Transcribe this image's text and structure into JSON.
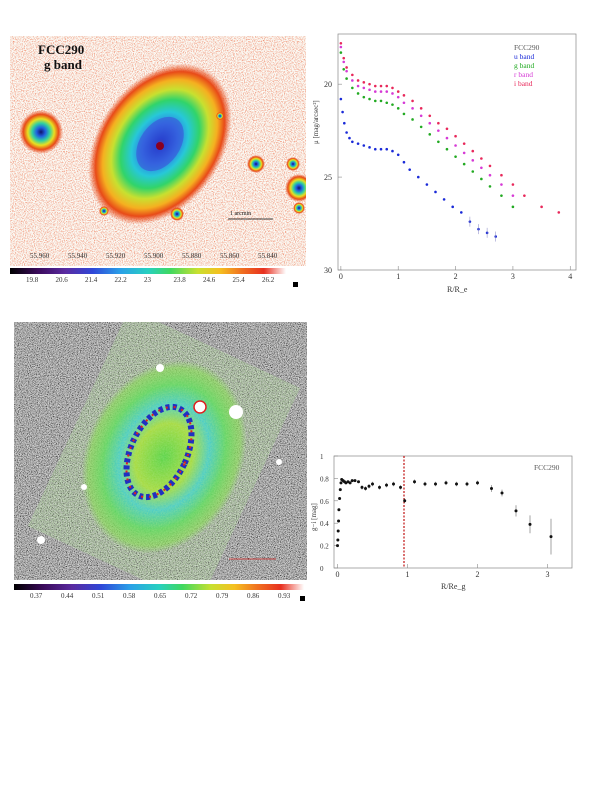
{
  "top_image": {
    "label_line1": "FCC290",
    "label_line2": "g band",
    "scalebar_label": "1 arcmin",
    "ra_ticks": [
      "55.960",
      "55.940",
      "55.920",
      "55.900",
      "55.880",
      "55.860",
      "55.840"
    ],
    "colorbar_ticks": [
      "19.8",
      "20.6",
      "21.4",
      "22.2",
      "23",
      "23.8",
      "24.6",
      "25.4",
      "26.2"
    ]
  },
  "bottom_image": {
    "colorbar_ticks": [
      "0.37",
      "0.44",
      "0.51",
      "0.58",
      "0.65",
      "0.72",
      "0.79",
      "0.86",
      "0.93"
    ]
  },
  "chart_data": [
    {
      "type": "scatter",
      "title": "",
      "xlabel": "R/R_e",
      "ylabel": "μ [mag/arcsec²]",
      "xlim": [
        -0.05,
        4.1
      ],
      "ylim": [
        30,
        17.3
      ],
      "x_ticks": [
        "0",
        "1",
        "2",
        "3",
        "4"
      ],
      "y_ticks": [
        "20",
        "25",
        "30"
      ],
      "legend_title": "FCC290",
      "legend_placement": "top-right",
      "series": [
        {
          "name": "u band",
          "color": "#1a2ad8",
          "x": [
            0,
            0.03,
            0.06,
            0.1,
            0.15,
            0.2,
            0.3,
            0.4,
            0.5,
            0.6,
            0.7,
            0.8,
            0.9,
            1.0,
            1.1,
            1.2,
            1.35,
            1.5,
            1.65,
            1.8,
            1.95,
            2.1,
            2.25,
            2.4,
            2.55,
            2.7
          ],
          "y": [
            20.8,
            21.5,
            22.1,
            22.6,
            22.9,
            23.1,
            23.2,
            23.3,
            23.4,
            23.5,
            23.5,
            23.5,
            23.6,
            23.8,
            24.2,
            24.6,
            25.0,
            25.4,
            25.8,
            26.2,
            26.6,
            26.9,
            27.4,
            27.8,
            28.0,
            28.2
          ]
        },
        {
          "name": "g band",
          "color": "#22aa22",
          "x": [
            0,
            0.05,
            0.1,
            0.2,
            0.3,
            0.4,
            0.5,
            0.6,
            0.7,
            0.8,
            0.9,
            1.0,
            1.1,
            1.25,
            1.4,
            1.55,
            1.7,
            1.85,
            2.0,
            2.15,
            2.3,
            2.45,
            2.6,
            2.8,
            3.0
          ],
          "y": [
            18.3,
            19.2,
            19.7,
            20.2,
            20.5,
            20.7,
            20.8,
            20.9,
            20.9,
            21.0,
            21.1,
            21.3,
            21.6,
            21.9,
            22.3,
            22.7,
            23.1,
            23.5,
            23.9,
            24.3,
            24.7,
            25.1,
            25.5,
            26.0,
            26.6
          ]
        },
        {
          "name": "r band",
          "color": "#d63ad6",
          "x": [
            0,
            0.05,
            0.1,
            0.2,
            0.3,
            0.4,
            0.5,
            0.6,
            0.7,
            0.8,
            0.9,
            1.0,
            1.1,
            1.25,
            1.4,
            1.55,
            1.7,
            1.85,
            2.0,
            2.15,
            2.3,
            2.45,
            2.6,
            2.8,
            3.0
          ],
          "y": [
            18.0,
            18.8,
            19.3,
            19.8,
            20.1,
            20.2,
            20.3,
            20.4,
            20.4,
            20.4,
            20.5,
            20.7,
            21.0,
            21.3,
            21.7,
            22.1,
            22.5,
            22.9,
            23.3,
            23.7,
            24.1,
            24.5,
            24.9,
            25.4,
            26.0
          ]
        },
        {
          "name": "i band",
          "color": "#e8285a",
          "x": [
            0,
            0.05,
            0.1,
            0.2,
            0.3,
            0.4,
            0.5,
            0.6,
            0.7,
            0.8,
            0.9,
            1.0,
            1.1,
            1.25,
            1.4,
            1.55,
            1.7,
            1.85,
            2.0,
            2.15,
            2.3,
            2.45,
            2.6,
            2.8,
            3.0,
            3.2,
            3.5,
            3.8
          ],
          "y": [
            17.8,
            18.6,
            19.1,
            19.5,
            19.8,
            19.9,
            20.0,
            20.1,
            20.1,
            20.1,
            20.2,
            20.4,
            20.6,
            20.9,
            21.3,
            21.7,
            22.1,
            22.4,
            22.8,
            23.2,
            23.6,
            24.0,
            24.4,
            24.9,
            25.4,
            26.0,
            26.6,
            26.9
          ]
        }
      ]
    },
    {
      "type": "scatter",
      "title": "",
      "xlabel": "R/Re_g",
      "ylabel": "g−i [mag]",
      "xlim": [
        -0.05,
        3.35
      ],
      "ylim": [
        0,
        1
      ],
      "x_ticks": [
        "0",
        "1",
        "2",
        "3"
      ],
      "y_ticks": [
        "0",
        "0.2",
        "0.4",
        "0.6",
        "0.8",
        "1"
      ],
      "legend_title": "FCC290",
      "vline_x": 0.95,
      "series": [
        {
          "name": "",
          "color": "#111111",
          "x": [
            0.0,
            0.005,
            0.01,
            0.015,
            0.02,
            0.03,
            0.04,
            0.05,
            0.06,
            0.08,
            0.1,
            0.12,
            0.15,
            0.18,
            0.21,
            0.25,
            0.3,
            0.35,
            0.4,
            0.45,
            0.5,
            0.6,
            0.7,
            0.8,
            0.9,
            0.96,
            1.1,
            1.25,
            1.4,
            1.55,
            1.7,
            1.85,
            2.0,
            2.2,
            2.35,
            2.55,
            2.75,
            3.05
          ],
          "y": [
            0.2,
            0.25,
            0.33,
            0.42,
            0.52,
            0.62,
            0.7,
            0.76,
            0.79,
            0.78,
            0.77,
            0.76,
            0.77,
            0.76,
            0.78,
            0.78,
            0.77,
            0.72,
            0.71,
            0.73,
            0.75,
            0.72,
            0.74,
            0.75,
            0.72,
            0.6,
            0.77,
            0.75,
            0.75,
            0.76,
            0.75,
            0.75,
            0.76,
            0.71,
            0.67,
            0.51,
            0.39,
            0.28
          ],
          "err": [
            0.01,
            0.01,
            0.01,
            0.01,
            0.01,
            0.01,
            0.01,
            0.01,
            0.01,
            0.01,
            0.01,
            0.01,
            0.01,
            0.01,
            0.01,
            0.01,
            0.01,
            0.02,
            0.02,
            0.02,
            0.02,
            0.02,
            0.02,
            0.02,
            0.02,
            0.02,
            0.02,
            0.02,
            0.02,
            0.02,
            0.02,
            0.02,
            0.02,
            0.03,
            0.03,
            0.05,
            0.08,
            0.16
          ]
        }
      ]
    }
  ]
}
